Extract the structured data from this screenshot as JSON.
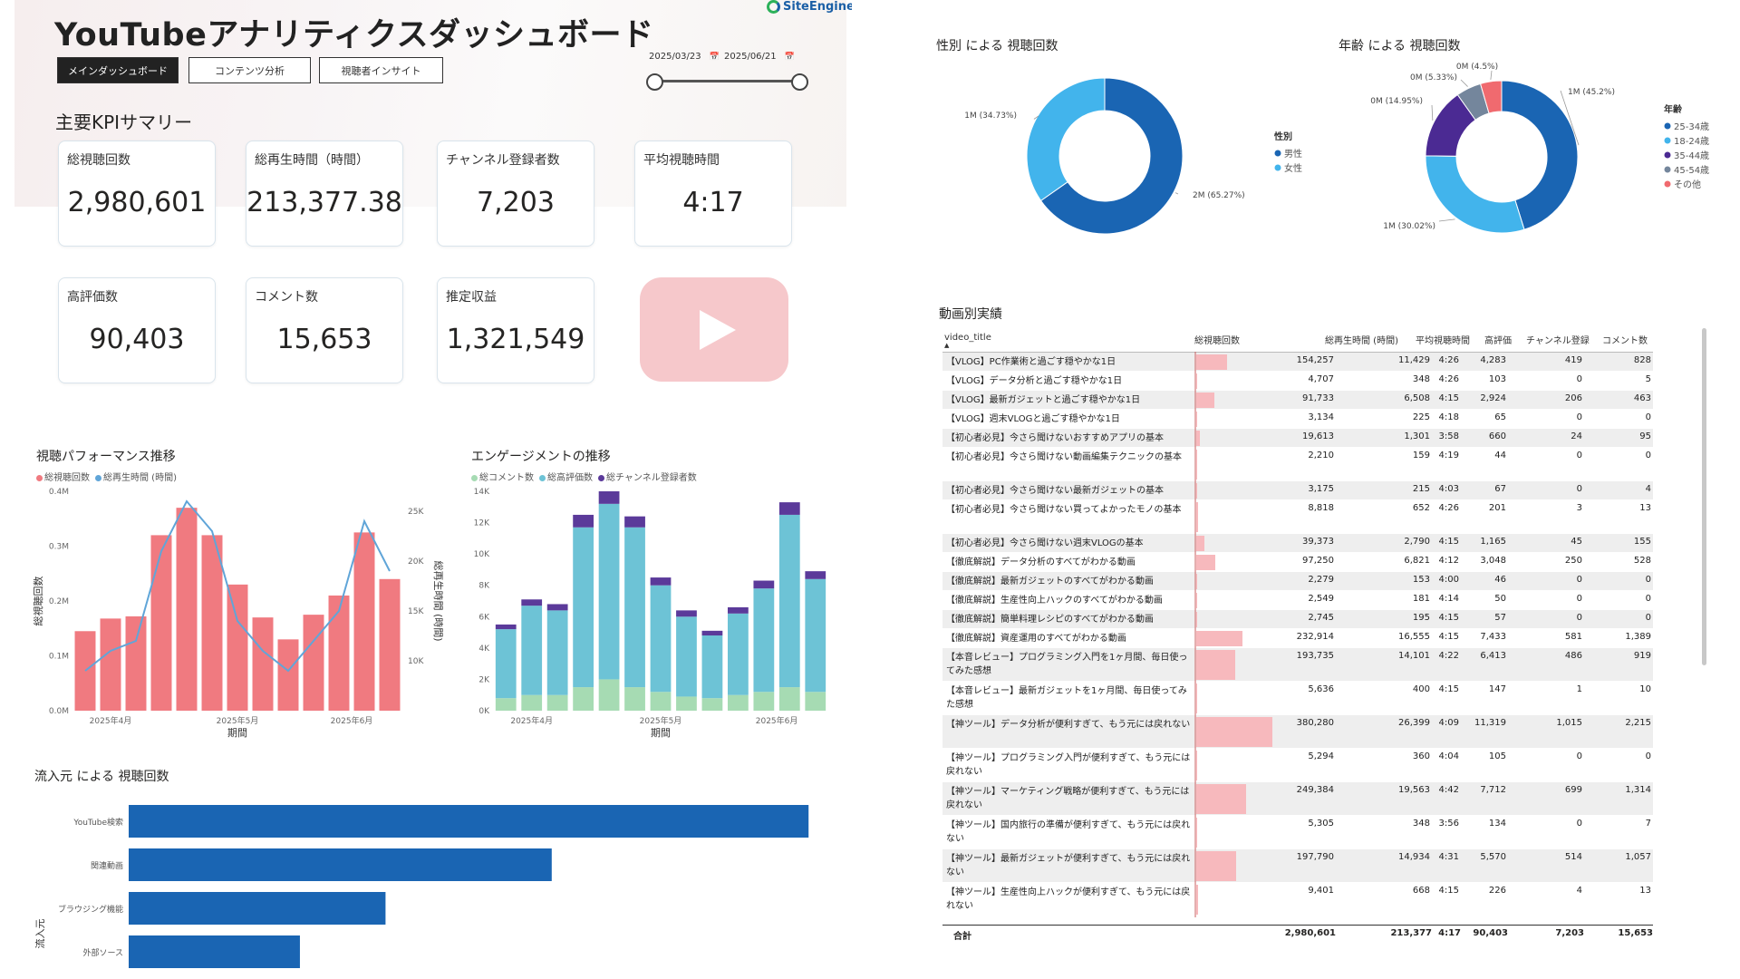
{
  "header": {
    "title": "YouTubeアナリティクスダッシュボード",
    "brand": "SiteEngine",
    "nav": [
      "メインダッシュボード",
      "コンテンツ分析",
      "視聴者インサイト"
    ],
    "date_start": "2025/03/23",
    "date_end": "2025/06/21",
    "calendar_icon": "calendar-icon"
  },
  "kpi": {
    "heading": "主要KPIサマリー",
    "cards": [
      {
        "label": "総視聴回数",
        "value": "2,980,601"
      },
      {
        "label": "総再生時間（時間）",
        "value": "213,377.38"
      },
      {
        "label": "チャンネル登録者数",
        "value": "7,203"
      },
      {
        "label": "平均視聴時間",
        "value": "4:17"
      },
      {
        "label": "高評価数",
        "value": "90,403"
      },
      {
        "label": "コメント数",
        "value": "15,653"
      },
      {
        "label": "推定収益",
        "value": "1,321,549"
      }
    ],
    "logo_icon": "youtube-play-icon"
  },
  "chart_data": [
    {
      "type": "bar",
      "title": "視聴パフォーマンス推移",
      "legend": [
        "総視聴回数",
        "総再生時間 (時間)"
      ],
      "xlabel": "期間",
      "ylabel": "総視聴回数",
      "y2label": "総再生時間 (時間)",
      "y_ticks": [
        "0.0M",
        "0.1M",
        "0.2M",
        "0.3M",
        "0.4M"
      ],
      "y2_ticks": [
        "10K",
        "15K",
        "20K",
        "25K"
      ],
      "x_ticks": [
        "2025年4月",
        "2025年5月",
        "2025年6月"
      ],
      "ylim": [
        0,
        0.4
      ],
      "y2lim": [
        5,
        27
      ],
      "series": [
        {
          "name": "総視聴回数",
          "unit": "M",
          "values": [
            0.145,
            0.168,
            0.172,
            0.32,
            0.37,
            0.32,
            0.23,
            0.17,
            0.13,
            0.175,
            0.21,
            0.325,
            0.24
          ],
          "color": "#f07a80"
        },
        {
          "name": "総再生時間 (時間)",
          "unit": "K",
          "values": [
            9,
            11,
            12,
            21,
            26,
            23,
            14,
            11,
            9,
            12,
            15,
            24,
            19
          ],
          "color": "#60a5d8"
        }
      ]
    },
    {
      "type": "bar",
      "title": "エンゲージメントの推移",
      "legend": [
        "総コメント数",
        "総高評価数",
        "総チャンネル登録者数"
      ],
      "xlabel": "期間",
      "y_ticks": [
        "0K",
        "2K",
        "4K",
        "6K",
        "8K",
        "10K",
        "12K",
        "14K"
      ],
      "x_ticks": [
        "2025年4月",
        "2025年5月",
        "2025年6月"
      ],
      "ylim": [
        0,
        14
      ],
      "series": [
        {
          "name": "総コメント数",
          "values": [
            0.8,
            1.0,
            1.0,
            1.5,
            2.0,
            1.5,
            1.2,
            0.9,
            0.8,
            1.0,
            1.2,
            1.5,
            1.2
          ],
          "color": "#a6dbb3"
        },
        {
          "name": "総高評価数",
          "values": [
            4.4,
            5.7,
            5.4,
            10.2,
            11.2,
            10.2,
            6.8,
            5.1,
            4.0,
            5.2,
            6.6,
            11.0,
            7.2
          ],
          "color": "#6dc3d6"
        },
        {
          "name": "総チャンネル登録者数",
          "values": [
            0.3,
            0.4,
            0.4,
            0.8,
            0.8,
            0.7,
            0.5,
            0.4,
            0.3,
            0.4,
            0.5,
            0.8,
            0.5
          ],
          "color": "#5b3a9a"
        }
      ]
    },
    {
      "type": "bar",
      "orientation": "horizontal",
      "title": "流入元 による 視聴回数",
      "ylabel": "流入元",
      "categories": [
        "YouTube検索",
        "関連動画",
        "ブラウジング機能",
        "外部ソース"
      ],
      "values": [
        1.35,
        0.84,
        0.51,
        0.34
      ],
      "xlim": [
        0,
        1.4
      ],
      "color": "#1a65b3"
    },
    {
      "type": "pie",
      "title": "性別 による 視聴回数",
      "legend_title": "性別",
      "labels": [
        "男性",
        "女性"
      ],
      "values": [
        65.27,
        34.73
      ],
      "data_labels": [
        "2M (65.27%)",
        "1M (34.73%)"
      ],
      "colors": [
        "#1a65b3",
        "#42b4ec"
      ]
    },
    {
      "type": "pie",
      "title": "年齢 による 視聴回数",
      "legend_title": "年齢",
      "labels": [
        "25-34歳",
        "18-24歳",
        "35-44歳",
        "45-54歳",
        "その他"
      ],
      "values": [
        45.2,
        30.02,
        14.95,
        5.33,
        4.5
      ],
      "data_labels": [
        "1M (45.2%)",
        "1M (30.02%)",
        "0M (14.95%)",
        "0M (5.33%)",
        "0M (4.5%)"
      ],
      "colors": [
        "#1a65b3",
        "#42b4ec",
        "#4b2a93",
        "#74869c",
        "#f06a6f"
      ]
    }
  ],
  "table": {
    "title": "動画別実績",
    "columns": [
      "video_title",
      "総視聴回数",
      "総再生時間 (時間)",
      "平均視聴時間",
      "高評価",
      "チャンネル登録",
      "コメント数"
    ],
    "rows": [
      [
        "【VLOG】PC作業術と過ごす穏やかな1日",
        "154,257",
        "11,429",
        "4:26",
        "4,283",
        "419",
        "828"
      ],
      [
        "【VLOG】データ分析と過ごす穏やかな1日",
        "4,707",
        "348",
        "4:26",
        "103",
        "0",
        "5"
      ],
      [
        "【VLOG】最新ガジェットと過ごす穏やかな1日",
        "91,733",
        "6,508",
        "4:15",
        "2,924",
        "206",
        "463"
      ],
      [
        "【VLOG】週末VLOGと過ごす穏やかな1日",
        "3,134",
        "225",
        "4:18",
        "65",
        "0",
        "0"
      ],
      [
        "【初心者必見】今さら聞けないおすすめアプリの基本",
        "19,613",
        "1,301",
        "3:58",
        "660",
        "24",
        "95"
      ],
      [
        "【初心者必見】今さら聞けない動画編集テクニックの基本",
        "2,210",
        "159",
        "4:19",
        "44",
        "0",
        "0"
      ],
      [
        "【初心者必見】今さら聞けない最新ガジェットの基本",
        "3,175",
        "215",
        "4:03",
        "67",
        "0",
        "4"
      ],
      [
        "【初心者必見】今さら聞けない買ってよかったモノの基本",
        "8,818",
        "652",
        "4:26",
        "201",
        "3",
        "13"
      ],
      [
        "【初心者必見】今さら聞けない週末VLOGの基本",
        "39,373",
        "2,790",
        "4:15",
        "1,165",
        "45",
        "155"
      ],
      [
        "【徹底解説】データ分析のすべてがわかる動画",
        "97,250",
        "6,821",
        "4:12",
        "3,048",
        "250",
        "528"
      ],
      [
        "【徹底解説】最新ガジェットのすべてがわかる動画",
        "2,279",
        "153",
        "4:00",
        "46",
        "0",
        "0"
      ],
      [
        "【徹底解説】生産性向上ハックのすべてがわかる動画",
        "2,549",
        "181",
        "4:14",
        "50",
        "0",
        "0"
      ],
      [
        "【徹底解説】簡単料理レシピのすべてがわかる動画",
        "2,745",
        "195",
        "4:15",
        "57",
        "0",
        "0"
      ],
      [
        "【徹底解説】資産運用のすべてがわかる動画",
        "232,914",
        "16,555",
        "4:15",
        "7,433",
        "581",
        "1,389"
      ],
      [
        "【本音レビュー】プログラミング入門を1ヶ月間、毎日使ってみた感想",
        "193,735",
        "14,101",
        "4:22",
        "6,413",
        "486",
        "919"
      ],
      [
        "【本音レビュー】最新ガジェットを1ヶ月間、毎日使ってみた感想",
        "5,636",
        "400",
        "4:15",
        "147",
        "1",
        "10"
      ],
      [
        "【神ツール】データ分析が便利すぎて、もう元には戻れない",
        "380,280",
        "26,399",
        "4:09",
        "11,319",
        "1,015",
        "2,215"
      ],
      [
        "【神ツール】プログラミング入門が便利すぎて、もう元には戻れない",
        "5,294",
        "360",
        "4:04",
        "105",
        "0",
        "0"
      ],
      [
        "【神ツール】マーケティング戦略が便利すぎて、もう元には戻れない",
        "249,384",
        "19,563",
        "4:42",
        "7,712",
        "699",
        "1,314"
      ],
      [
        "【神ツール】国内旅行の準備が便利すぎて、もう元には戻れない",
        "5,305",
        "348",
        "3:56",
        "134",
        "0",
        "7"
      ],
      [
        "【神ツール】最新ガジェットが便利すぎて、もう元には戻れない",
        "197,790",
        "14,934",
        "4:31",
        "5,570",
        "514",
        "1,057"
      ],
      [
        "【神ツール】生産性向上ハックが便利すぎて、もう元には戻れない",
        "9,401",
        "668",
        "4:15",
        "226",
        "4",
        "13"
      ]
    ],
    "total": [
      "合計",
      "2,980,601",
      "213,377",
      "4:17",
      "90,403",
      "7,203",
      "15,653"
    ]
  }
}
